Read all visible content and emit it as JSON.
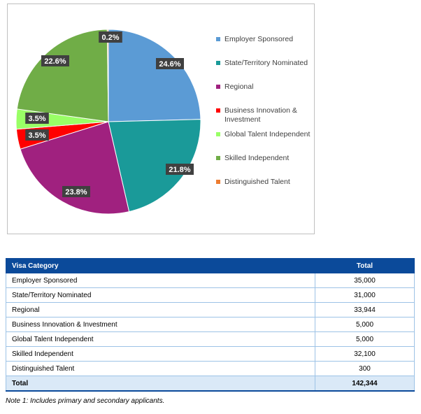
{
  "chart_data": {
    "type": "pie",
    "title": "",
    "legend_position": "right",
    "slices": [
      {
        "name": "Employer Sponsored",
        "value": 24.6,
        "label": "24.6%",
        "color": "#5b9bd5"
      },
      {
        "name": "State/Territory Nominated",
        "value": 21.8,
        "label": "21.8%",
        "color": "#1a9a99"
      },
      {
        "name": "Regional",
        "value": 23.8,
        "label": "23.8%",
        "color": "#a0217f"
      },
      {
        "name": "Business Innovation & Investment",
        "value": 3.5,
        "label": "3.5%",
        "color": "#ff0000"
      },
      {
        "name": "Global Talent Independent",
        "value": 3.5,
        "label": "3.5%",
        "color": "#99ff66"
      },
      {
        "name": "Skilled Independent",
        "value": 22.6,
        "label": "22.6%",
        "color": "#70ad47"
      },
      {
        "name": "Distinguished Talent",
        "value": 0.2,
        "label": "0.2%",
        "color": "#ed7d31"
      }
    ]
  },
  "table": {
    "headers": [
      "Visa Category",
      "Total"
    ],
    "rows": [
      [
        "Employer Sponsored",
        "35,000"
      ],
      [
        "State/Territory Nominated",
        "31,000"
      ],
      [
        "Regional",
        "33,944"
      ],
      [
        "Business Innovation & Investment",
        "5,000"
      ],
      [
        "Global Talent Independent",
        "5,000"
      ],
      [
        "Skilled Independent",
        "32,100"
      ],
      [
        "Distinguished Talent",
        "300"
      ]
    ],
    "total_row": [
      "Total",
      "142,344"
    ]
  },
  "note": "Note 1: Includes primary and secondary applicants."
}
